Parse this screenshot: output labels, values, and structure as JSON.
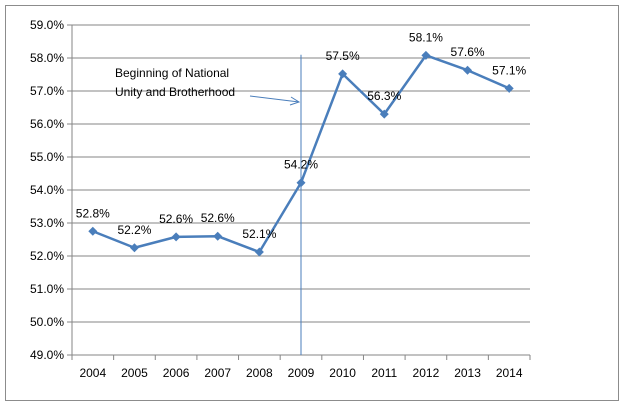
{
  "chart_data": {
    "type": "line",
    "x": [
      "2004",
      "2005",
      "2006",
      "2007",
      "2008",
      "2009",
      "2010",
      "2011",
      "2012",
      "2013",
      "2014"
    ],
    "series": [
      {
        "values": [
          52.75,
          52.25,
          52.58,
          52.6,
          52.12,
          54.22,
          57.52,
          56.3,
          58.08,
          57.63,
          57.08
        ],
        "labels": [
          "52.8%",
          "52.2%",
          "52.6%",
          "52.6%",
          "52.1%",
          "54.2%",
          "57.5%",
          "56.3%",
          "58.1%",
          "57.6%",
          "57.1%"
        ],
        "color": "#4a7ebb"
      }
    ],
    "ylim": [
      49.0,
      59.0
    ],
    "yticks": [
      "49.0%",
      "50.0%",
      "51.0%",
      "52.0%",
      "53.0%",
      "54.0%",
      "55.0%",
      "56.0%",
      "57.0%",
      "58.0%",
      "59.0%"
    ],
    "grid": true,
    "title": "",
    "xlabel": "",
    "ylabel": "",
    "reference_line": {
      "x": "2009"
    },
    "annotation": {
      "line1": "Beginning  of National",
      "line2": "Unity and Brotherhood"
    }
  }
}
